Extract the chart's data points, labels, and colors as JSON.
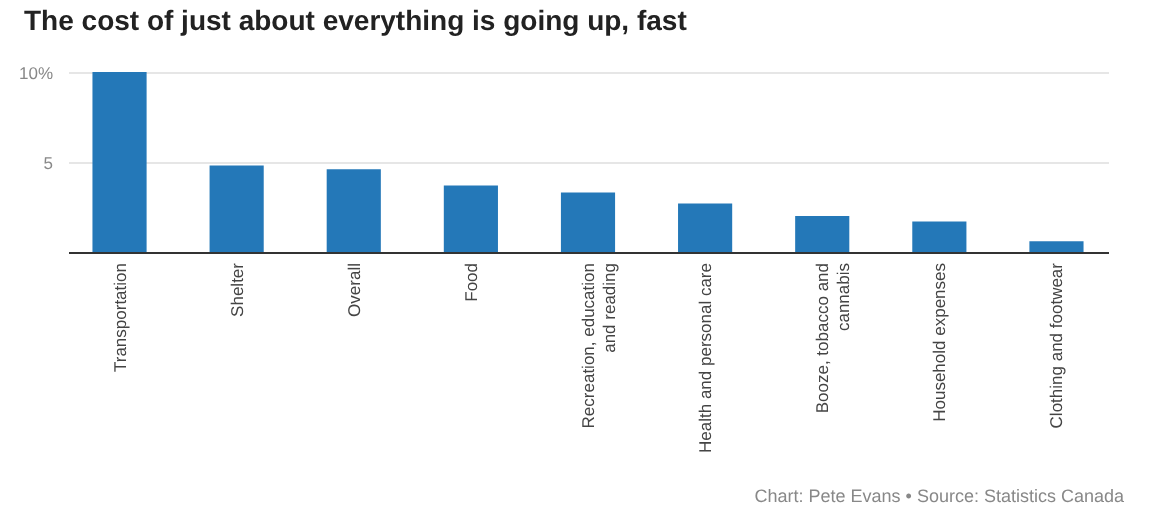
{
  "chart_data": {
    "type": "bar",
    "title": "The cost of just about everything is going up, fast",
    "categories": [
      "Transportation",
      "Shelter",
      "Overall",
      "Food",
      "Recreation, education and reading",
      "Health and personal care",
      "Booze, tobacco and cannabis",
      "Household expenses",
      "Clothing and footwear"
    ],
    "values": [
      10,
      4.8,
      4.6,
      3.7,
      3.3,
      2.7,
      2.0,
      1.7,
      0.6
    ],
    "color": "#2478b8",
    "ylim": [
      0,
      10
    ],
    "yticks": [
      5,
      {
        "value": 10,
        "label": "10%"
      }
    ],
    "grid": "y",
    "annotations": [
      "Chart: Pete Evans • Source: Statistics Canada"
    ]
  }
}
